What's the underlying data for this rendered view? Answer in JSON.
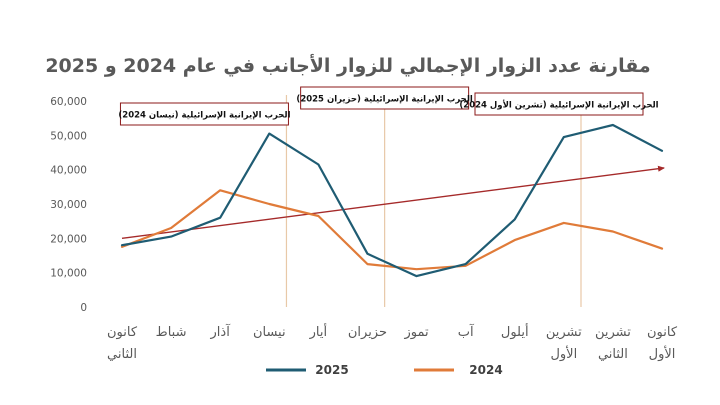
{
  "chart_data": {
    "type": "line",
    "title": "مقارنة عدد الزوار الإجمالي للزوار الأجانب  في عام 2024 و 2025",
    "categories": [
      [
        "كانون",
        "الثاني"
      ],
      [
        "شباط"
      ],
      [
        "آذار"
      ],
      [
        "نيسان"
      ],
      [
        "أيار"
      ],
      [
        "حزيران"
      ],
      [
        "تموز"
      ],
      [
        "آب"
      ],
      [
        "أيلول"
      ],
      [
        "تشرين",
        "الأول"
      ],
      [
        "تشرين",
        "الثاني"
      ],
      [
        "كانون",
        "الأول"
      ]
    ],
    "ylim": [
      0,
      60000
    ],
    "yticks": [
      0,
      10000,
      20000,
      30000,
      40000,
      50000,
      60000
    ],
    "ytick_labels": [
      "0",
      "10,000",
      "20,000",
      "30,000",
      "40,000",
      "50,000",
      "60,000"
    ],
    "series": [
      {
        "name": "2025",
        "color": "#1f5c73",
        "values": [
          18000,
          20500,
          26000,
          50500,
          41500,
          15500,
          9000,
          12500,
          25500,
          49500,
          53000,
          45500
        ]
      },
      {
        "name": "2024",
        "color": "#e07b39",
        "values": [
          17500,
          23000,
          34000,
          30000,
          26500,
          12500,
          11000,
          12000,
          19500,
          24500,
          22000,
          17000
        ]
      }
    ],
    "trendline": {
      "color": "#a52a2a",
      "from_index": 0,
      "to_index": 11,
      "start": 20000,
      "end": 40500
    },
    "event_lines": [
      {
        "index": 3.35,
        "label": "الحرب الإيرانية الإسرائيلية  (نيسان 2024)"
      },
      {
        "index": 5.35,
        "label": "الحرب الإيرانية الإسرائيلية  (حزيران 2025)"
      },
      {
        "index": 9.35,
        "label": "الحرب الإيرانية الإسرائيلية (تشرين الأول 2024)"
      }
    ],
    "legend": "bottom",
    "grid": false
  }
}
